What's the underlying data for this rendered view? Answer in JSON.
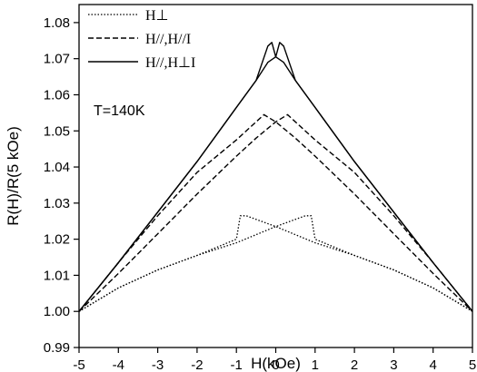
{
  "chart_data": {
    "type": "line",
    "xlabel": "H(kOe)",
    "ylabel": "R(H)/R(5 kOe)",
    "xlim": [
      -5,
      5
    ],
    "ylim": [
      0.99,
      1.085
    ],
    "x_ticks": [
      "-5",
      "-4",
      "-3",
      "-2",
      "-1",
      "0",
      "1",
      "2",
      "3",
      "4",
      "5"
    ],
    "y_ticks": [
      "0.99",
      "1.00",
      "1.01",
      "1.02",
      "1.03",
      "1.04",
      "1.05",
      "1.06",
      "1.07",
      "1.08"
    ],
    "legend_position": "top-left",
    "annotation": "T=140K",
    "series": [
      {
        "name": "H⊥",
        "dash": "dotted",
        "segments": [
          [
            [
              -5,
              1.0
            ],
            [
              -4,
              1.0065
            ],
            [
              -3,
              1.0115
            ],
            [
              -2,
              1.0155
            ],
            [
              -1,
              1.019
            ],
            [
              0,
              1.0235
            ],
            [
              0.75,
              1.0265
            ],
            [
              0.9,
              1.0265
            ],
            [
              1.0,
              1.02
            ],
            [
              2,
              1.0155
            ],
            [
              3,
              1.0115
            ],
            [
              4,
              1.0065
            ],
            [
              5,
              1.0
            ]
          ],
          [
            [
              -5,
              1.0
            ],
            [
              -4,
              1.0065
            ],
            [
              -3,
              1.0115
            ],
            [
              -2,
              1.0155
            ],
            [
              -1,
              1.02
            ],
            [
              -0.9,
              1.0265
            ],
            [
              -0.75,
              1.0265
            ],
            [
              0,
              1.0235
            ],
            [
              1,
              1.019
            ],
            [
              2,
              1.0155
            ],
            [
              3,
              1.0115
            ],
            [
              4,
              1.0065
            ],
            [
              5,
              1.0
            ]
          ]
        ]
      },
      {
        "name": "H//,H//I",
        "dash": "dashed",
        "segments": [
          [
            [
              -5,
              1.0
            ],
            [
              -4,
              1.0105
            ],
            [
              -3,
              1.0215
            ],
            [
              -2,
              1.0325
            ],
            [
              -1,
              1.043
            ],
            [
              -0.5,
              1.048
            ],
            [
              0,
              1.0525
            ],
            [
              0.3,
              1.0545
            ],
            [
              1,
              1.0475
            ],
            [
              2,
              1.0385
            ],
            [
              3,
              1.0265
            ],
            [
              4,
              1.0135
            ],
            [
              5,
              1.0
            ]
          ],
          [
            [
              -5,
              1.0
            ],
            [
              -4,
              1.0135
            ],
            [
              -3,
              1.0265
            ],
            [
              -2,
              1.0385
            ],
            [
              -1,
              1.0475
            ],
            [
              -0.3,
              1.0545
            ],
            [
              0,
              1.0525
            ],
            [
              0.5,
              1.048
            ],
            [
              1,
              1.043
            ],
            [
              2,
              1.0325
            ],
            [
              3,
              1.0215
            ],
            [
              4,
              1.0105
            ],
            [
              5,
              1.0
            ]
          ]
        ]
      },
      {
        "name": "H//,H⊥I",
        "dash": "solid",
        "segments": [
          [
            [
              -5,
              1.0
            ],
            [
              -4,
              1.0135
            ],
            [
              -3,
              1.0275
            ],
            [
              -2,
              1.0415
            ],
            [
              -1,
              1.0565
            ],
            [
              -0.5,
              1.064
            ],
            [
              -0.2,
              1.069
            ],
            [
              0,
              1.0705
            ],
            [
              0.1,
              1.0745
            ],
            [
              0.2,
              1.0735
            ],
            [
              0.5,
              1.064
            ],
            [
              1,
              1.0565
            ],
            [
              2,
              1.0415
            ],
            [
              3,
              1.0275
            ],
            [
              4,
              1.0135
            ],
            [
              5,
              1.0
            ]
          ],
          [
            [
              -5,
              1.0
            ],
            [
              -4,
              1.0135
            ],
            [
              -3,
              1.0275
            ],
            [
              -2,
              1.0415
            ],
            [
              -1,
              1.0565
            ],
            [
              -0.5,
              1.064
            ],
            [
              -0.2,
              1.0735
            ],
            [
              -0.1,
              1.0745
            ],
            [
              0,
              1.0705
            ],
            [
              0.2,
              1.069
            ],
            [
              0.5,
              1.064
            ],
            [
              1,
              1.0565
            ],
            [
              2,
              1.0415
            ],
            [
              3,
              1.0275
            ],
            [
              4,
              1.0135
            ],
            [
              5,
              1.0
            ]
          ]
        ]
      }
    ]
  }
}
